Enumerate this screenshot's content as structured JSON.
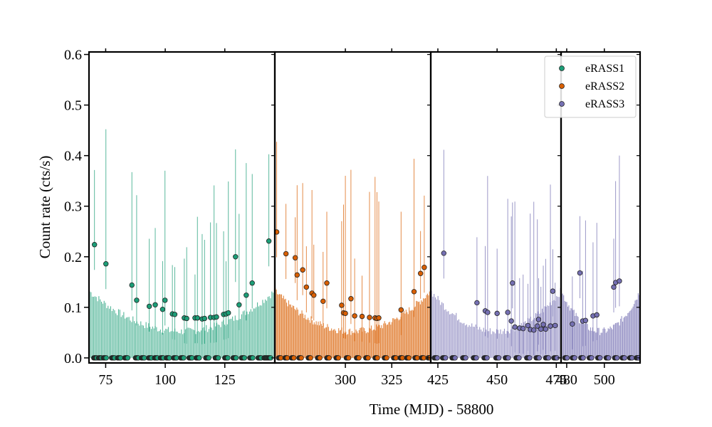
{
  "chart_data": {
    "type": "scatter",
    "xlabel": "Time (MJD) - 58800",
    "ylabel": "Count rate (cts/s)",
    "ylim": [
      -0.01,
      0.605
    ],
    "y_ticks": [
      0.0,
      0.1,
      0.2,
      0.3,
      0.4,
      0.5,
      0.6
    ],
    "y_tick_labels": [
      "0.0",
      "0.1",
      "0.2",
      "0.3",
      "0.4",
      "0.5",
      "0.6"
    ],
    "legend_position": "top-right",
    "grid": false,
    "panels": [
      {
        "xlim": [
          68,
          146
        ],
        "x_ticks": [
          75,
          100,
          125
        ],
        "x_tick_labels": [
          "75",
          "100",
          "125"
        ],
        "series": [
          {
            "name": "eRASS1",
            "color": "#1b9e77",
            "points": [
              [
                70.3,
                0.224
              ],
              [
                75.1,
                0.186
              ],
              [
                86.0,
                0.144
              ],
              [
                88.0,
                0.114
              ],
              [
                93.3,
                0.102
              ],
              [
                95.8,
                0.105
              ],
              [
                98.9,
                0.096
              ],
              [
                99.9,
                0.114
              ],
              [
                103.0,
                0.087
              ],
              [
                104.0,
                0.086
              ],
              [
                108.0,
                0.079
              ],
              [
                109.0,
                0.078
              ],
              [
                112.5,
                0.079
              ],
              [
                113.5,
                0.079
              ],
              [
                115.5,
                0.077
              ],
              [
                116.5,
                0.078
              ],
              [
                119.0,
                0.08
              ],
              [
                120.5,
                0.08
              ],
              [
                121.5,
                0.081
              ],
              [
                124.5,
                0.086
              ],
              [
                125.5,
                0.087
              ],
              [
                126.5,
                0.089
              ],
              [
                129.5,
                0.2
              ],
              [
                131.0,
                0.105
              ],
              [
                134.0,
                0.124
              ],
              [
                136.5,
                0.148
              ],
              [
                143.5,
                0.231
              ]
            ],
            "upper_limits": [
              70.0,
              72.0,
              74.0,
              77.5,
              80.0,
              83.0,
              87.5,
              90.0,
              93.0,
              95.5,
              98.0,
              100.5,
              103.5,
              106.5,
              110.0,
              113.0,
              117.0,
              121.0,
              125.0,
              128.5,
              132.0,
              135.5,
              139.0,
              141.5,
              143.0
            ]
          }
        ]
      },
      {
        "xlim": [
          262,
          346
        ],
        "x_ticks": [
          300,
          325
        ],
        "x_tick_labels": [
          "300",
          "325"
        ],
        "series": [
          {
            "name": "eRASS2",
            "color": "#d95f02",
            "points": [
              [
                263.0,
                0.249
              ],
              [
                268.0,
                0.206
              ],
              [
                273.0,
                0.198
              ],
              [
                274.0,
                0.164
              ],
              [
                277.0,
                0.174
              ],
              [
                279.0,
                0.14
              ],
              [
                282.0,
                0.128
              ],
              [
                283.0,
                0.124
              ],
              [
                288.0,
                0.112
              ],
              [
                290.0,
                0.148
              ],
              [
                298.0,
                0.104
              ],
              [
                299.0,
                0.089
              ],
              [
                300.0,
                0.088
              ],
              [
                303.0,
                0.117
              ],
              [
                305.0,
                0.083
              ],
              [
                309.0,
                0.082
              ],
              [
                313.0,
                0.08
              ],
              [
                316.0,
                0.079
              ],
              [
                317.0,
                0.078
              ],
              [
                318.0,
                0.079
              ],
              [
                330.0,
                0.095
              ],
              [
                337.0,
                0.131
              ],
              [
                340.5,
                0.167
              ],
              [
                342.5,
                0.179
              ]
            ],
            "upper_limits": [
              264.0,
              267.5,
              271.0,
              275.0,
              280.0,
              285.0,
              290.0,
              295.0,
              300.5,
              306.0,
              311.0,
              316.0,
              321.0,
              326.0,
              329.5,
              333.0,
              337.5,
              341.0,
              344.5
            ]
          }
        ]
      },
      {
        "xlim": [
          422,
          477
        ],
        "x_ticks": [
          425,
          450,
          475
        ],
        "x_tick_labels": [
          "425",
          "450",
          "475"
        ],
        "series": [
          {
            "name": "eRASS3",
            "color": "#7570b3",
            "points": [
              [
                427.5,
                0.207
              ],
              [
                441.5,
                0.109
              ],
              [
                445.0,
                0.093
              ],
              [
                446.0,
                0.09
              ],
              [
                450.0,
                0.088
              ],
              [
                454.5,
                0.09
              ],
              [
                456.0,
                0.073
              ],
              [
                456.5,
                0.148
              ],
              [
                457.5,
                0.061
              ],
              [
                459.5,
                0.059
              ],
              [
                461.0,
                0.058
              ],
              [
                463.0,
                0.064
              ],
              [
                464.0,
                0.056
              ],
              [
                465.5,
                0.055
              ],
              [
                467.0,
                0.063
              ],
              [
                467.5,
                0.076
              ],
              [
                468.5,
                0.057
              ],
              [
                469.5,
                0.066
              ],
              [
                470.5,
                0.057
              ],
              [
                472.5,
                0.063
              ],
              [
                473.5,
                0.132
              ],
              [
                474.5,
                0.064
              ]
            ],
            "upper_limits": [
              423.5,
              427.0,
              431.0,
              435.5,
              440.0,
              444.5,
              449.5,
              453.5,
              458.0,
              462.5,
              466.5,
              470.5,
              474.0
            ]
          }
        ]
      },
      {
        "xlim": [
          477,
          519
        ],
        "x_ticks": [
          480,
          500
        ],
        "x_tick_labels": [
          "480",
          "500"
        ],
        "series": [
          {
            "name": "eRASS3",
            "color": "#7570b3",
            "points": [
              [
                483.0,
                0.067
              ],
              [
                487.0,
                0.168
              ],
              [
                488.5,
                0.073
              ],
              [
                490.0,
                0.074
              ],
              [
                494.0,
                0.083
              ],
              [
                496.0,
                0.085
              ],
              [
                505.0,
                0.14
              ],
              [
                506.0,
                0.149
              ],
              [
                508.0,
                0.152
              ]
            ],
            "upper_limits": [
              479.0,
              483.0,
              487.5,
              492.0,
              496.5,
              501.0,
              505.5,
              509.5,
              513.5,
              517.0
            ]
          }
        ]
      }
    ],
    "legend": [
      {
        "label": "eRASS1",
        "color": "#1b9e77"
      },
      {
        "label": "eRASS2",
        "color": "#d95f02"
      },
      {
        "label": "eRASS3",
        "color": "#7570b3"
      }
    ]
  }
}
